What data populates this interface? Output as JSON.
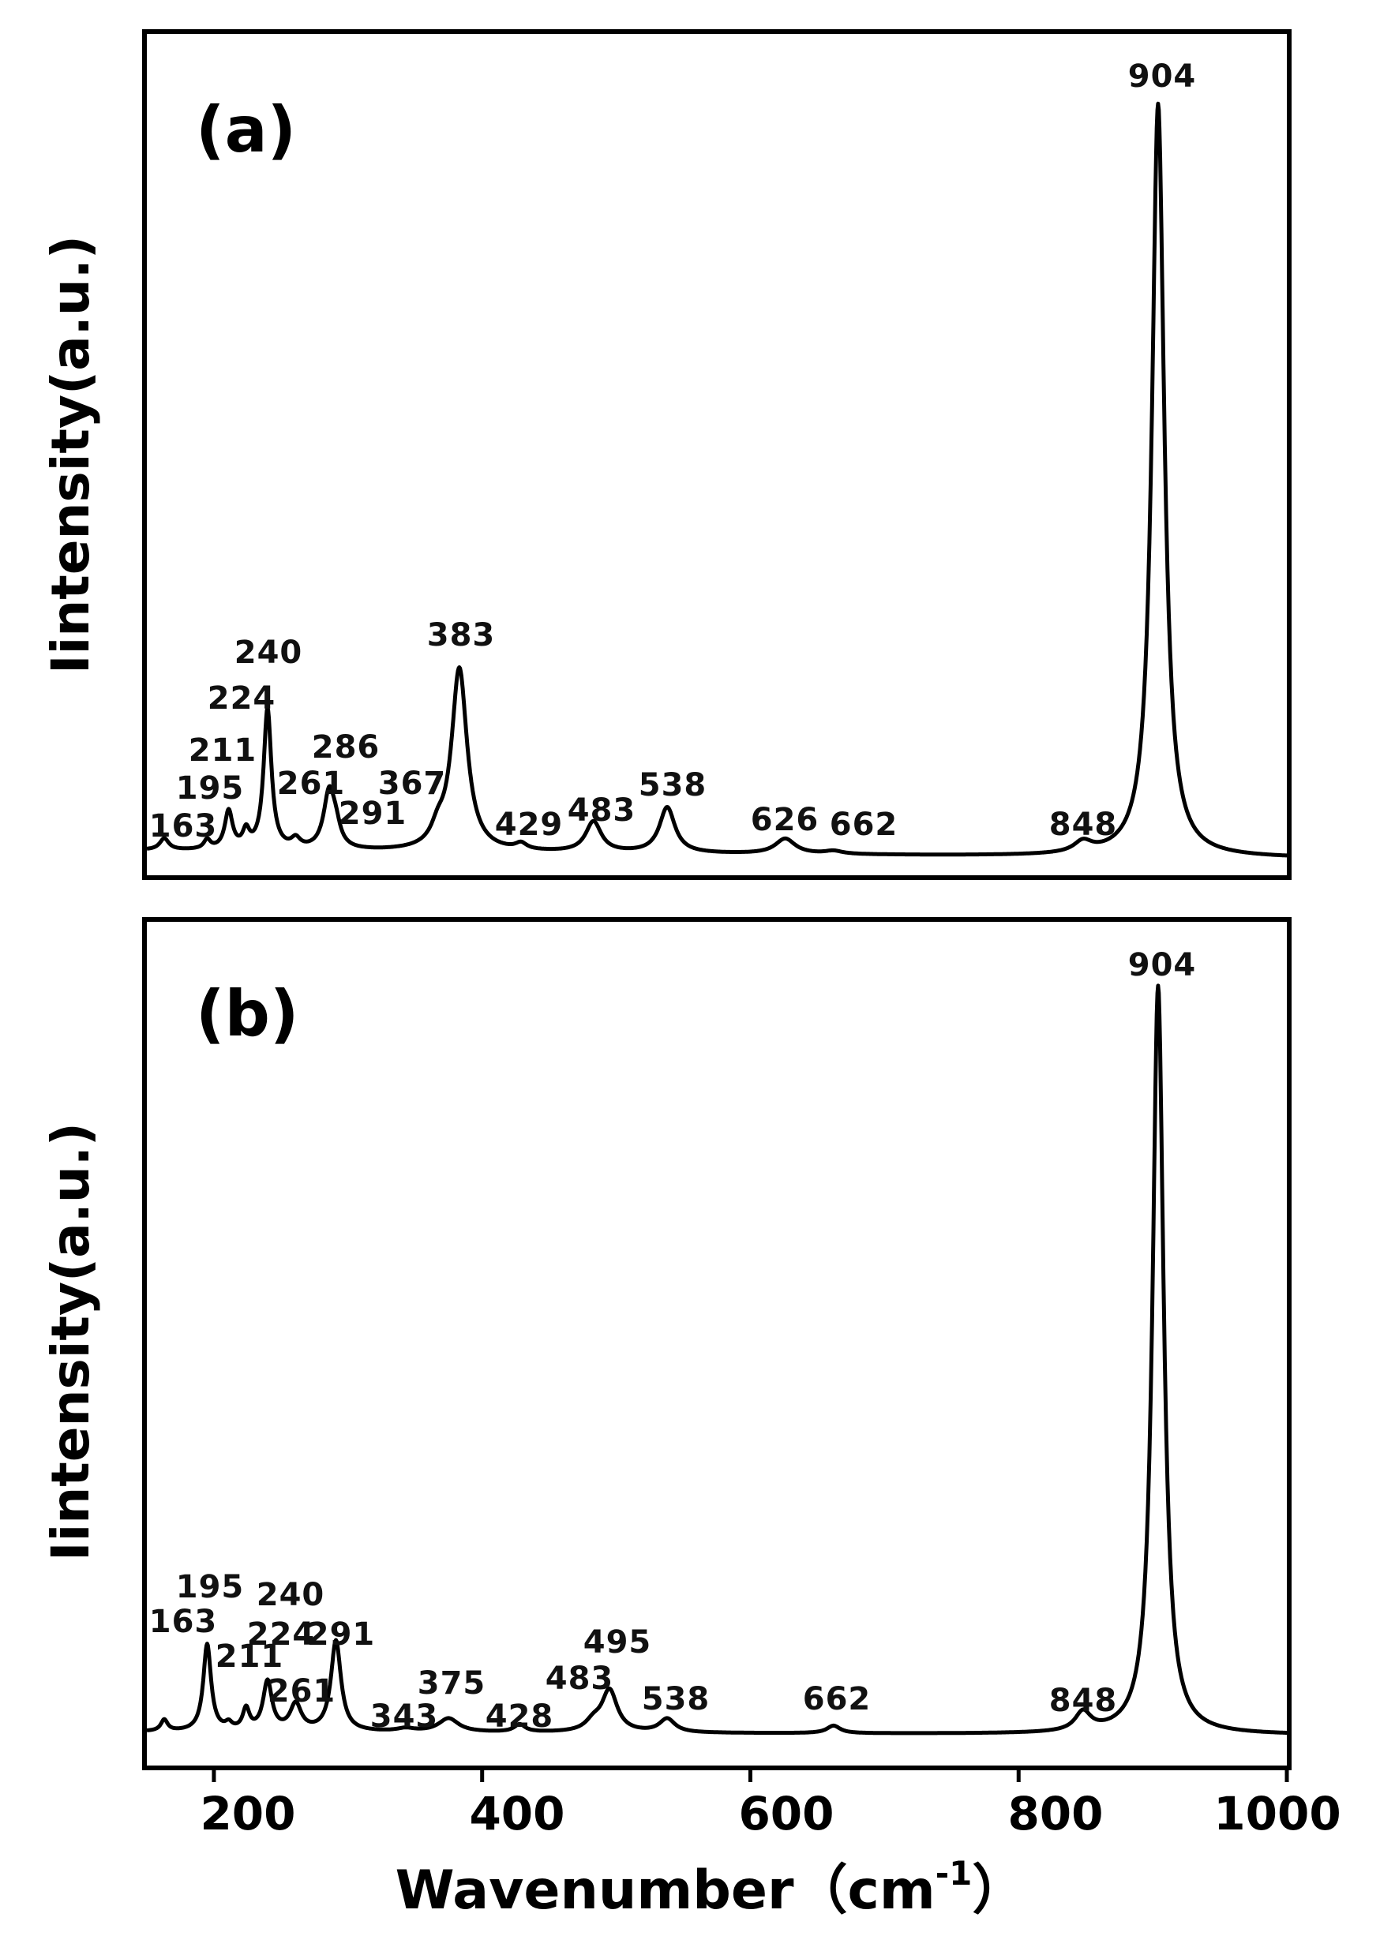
{
  "chart_data": [
    {
      "type": "line",
      "panel_label": "(a)",
      "ylabel": "Iintensity(a.u.)",
      "xlim": [
        150,
        1000
      ],
      "baseline_left": 0.015,
      "baseline_right": 0.005,
      "peaks": [
        {
          "x": 163,
          "height": 0.015,
          "width": 4
        },
        {
          "x": 195,
          "height": 0.012,
          "width": 3
        },
        {
          "x": 211,
          "height": 0.05,
          "width": 3.5
        },
        {
          "x": 224,
          "height": 0.022,
          "width": 3
        },
        {
          "x": 240,
          "height": 0.185,
          "width": 3.5
        },
        {
          "x": 261,
          "height": 0.012,
          "width": 4
        },
        {
          "x": 286,
          "height": 0.075,
          "width": 5
        },
        {
          "x": 291,
          "height": 0.02,
          "width": 4
        },
        {
          "x": 367,
          "height": 0.02,
          "width": 6
        },
        {
          "x": 383,
          "height": 0.24,
          "width": 7
        },
        {
          "x": 429,
          "height": 0.008,
          "width": 5
        },
        {
          "x": 483,
          "height": 0.04,
          "width": 7
        },
        {
          "x": 538,
          "height": 0.06,
          "width": 7
        },
        {
          "x": 626,
          "height": 0.02,
          "width": 9
        },
        {
          "x": 662,
          "height": 0.004,
          "width": 8
        },
        {
          "x": 848,
          "height": 0.014,
          "width": 8
        },
        {
          "x": 904,
          "height": 0.99,
          "width": 5.5
        }
      ],
      "annotations": [
        "163",
        "195",
        "211",
        "224",
        "240",
        "261",
        "286",
        "291",
        "367",
        "383",
        "429",
        "483",
        "538",
        "626",
        "662",
        "848",
        "904"
      ]
    },
    {
      "type": "line",
      "panel_label": "(b)",
      "ylabel": "Iintensity(a.u.)",
      "xlabel": "Wavenumber (cm-1)",
      "xlabel_main": "Wavenumber（cm",
      "xlabel_sup": "-1",
      "xlabel_close": "）",
      "xlim": [
        150,
        1000
      ],
      "xticks": [
        200,
        400,
        600,
        800,
        1000
      ],
      "xtick_labels": [
        "200",
        "400",
        "600",
        "800",
        "1000"
      ],
      "baseline_left": 0.008,
      "baseline_right": 0.004,
      "peaks": [
        {
          "x": 163,
          "height": 0.015,
          "width": 3
        },
        {
          "x": 195,
          "height": 0.115,
          "width": 3.5
        },
        {
          "x": 211,
          "height": 0.008,
          "width": 3
        },
        {
          "x": 224,
          "height": 0.028,
          "width": 3
        },
        {
          "x": 240,
          "height": 0.065,
          "width": 4
        },
        {
          "x": 261,
          "height": 0.035,
          "width": 5
        },
        {
          "x": 291,
          "height": 0.12,
          "width": 4.5
        },
        {
          "x": 343,
          "height": 0.004,
          "width": 8
        },
        {
          "x": 375,
          "height": 0.018,
          "width": 9
        },
        {
          "x": 428,
          "height": 0.01,
          "width": 5
        },
        {
          "x": 483,
          "height": 0.012,
          "width": 7
        },
        {
          "x": 495,
          "height": 0.055,
          "width": 7
        },
        {
          "x": 538,
          "height": 0.018,
          "width": 7
        },
        {
          "x": 662,
          "height": 0.01,
          "width": 6
        },
        {
          "x": 848,
          "height": 0.025,
          "width": 7
        },
        {
          "x": 904,
          "height": 0.99,
          "width": 5
        }
      ],
      "annotations": [
        "163",
        "195",
        "211",
        "224",
        "240",
        "261",
        "291",
        "343",
        "375",
        "428",
        "483",
        "495",
        "538",
        "662",
        "848",
        "904"
      ]
    }
  ]
}
